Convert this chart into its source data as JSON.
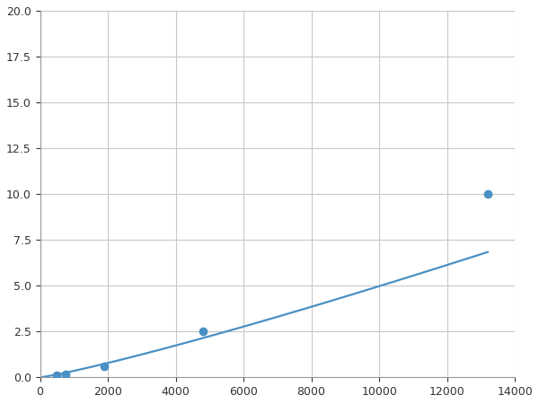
{
  "x_data": [
    100,
    500,
    750,
    1900,
    4800,
    13200
  ],
  "y_data": [
    0.05,
    0.1,
    0.15,
    0.6,
    2.5,
    10.0
  ],
  "marker_x": [
    500,
    750,
    1900,
    4800,
    13200
  ],
  "marker_y": [
    0.1,
    0.15,
    0.6,
    2.5,
    10.0
  ],
  "line_color": "#4a90c4",
  "marker_color": "#4a90c4",
  "marker_size": 6,
  "xlim": [
    0,
    14000
  ],
  "ylim": [
    0,
    20
  ],
  "xticks": [
    0,
    2000,
    4000,
    6000,
    8000,
    10000,
    12000,
    14000
  ],
  "yticks": [
    0.0,
    2.5,
    5.0,
    7.5,
    10.0,
    12.5,
    15.0,
    17.5,
    20.0
  ],
  "grid_color": "#c8c8c8",
  "bg_color": "#ffffff",
  "fig_bg_color": "#ffffff",
  "linewidth": 1.6
}
